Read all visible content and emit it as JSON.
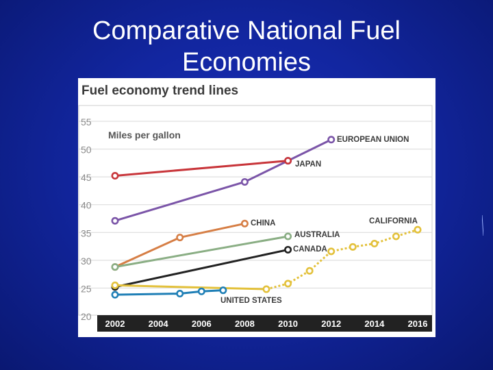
{
  "slide": {
    "title_line1": "Comparative National Fuel",
    "title_line2": "Economies"
  },
  "chart_data": {
    "type": "line",
    "title": "Fuel economy trend lines",
    "ylabel": "Miles per gallon",
    "xlabel": "",
    "xlim": [
      2001.3,
      2016.8
    ],
    "ylim": [
      20,
      56
    ],
    "x_ticks": [
      2002,
      2004,
      2006,
      2008,
      2010,
      2012,
      2014,
      2016
    ],
    "y_ticks": [
      20,
      25,
      30,
      35,
      40,
      45,
      50,
      55
    ],
    "grid": true,
    "legend": "inline labels",
    "series": [
      {
        "name": "EUROPEAN UNION",
        "color": "#7b55a8",
        "dashed": false,
        "points": [
          [
            2002,
            37.1
          ],
          [
            2008,
            44.1
          ],
          [
            2010,
            47.9
          ],
          [
            2012,
            51.7
          ]
        ]
      },
      {
        "name": "JAPAN",
        "color": "#c8353a",
        "dashed": false,
        "points": [
          [
            2002,
            45.2
          ],
          [
            2010,
            47.9
          ]
        ]
      },
      {
        "name": "CHINA",
        "color": "#d67e45",
        "dashed": false,
        "points": [
          [
            2002,
            28.8
          ],
          [
            2005,
            34.1
          ],
          [
            2008,
            36.6
          ]
        ]
      },
      {
        "name": "AUSTRALIA",
        "color": "#8aae84",
        "dashed": false,
        "points": [
          [
            2002,
            28.8
          ],
          [
            2010,
            34.3
          ]
        ]
      },
      {
        "name": "CANADA",
        "color": "#222222",
        "dashed": false,
        "points": [
          [
            2002,
            25.2
          ],
          [
            2010,
            31.9
          ]
        ]
      },
      {
        "name": "UNITED STATES",
        "color": "#1f7fb6",
        "dashed": false,
        "points": [
          [
            2002,
            23.8
          ],
          [
            2005,
            24.0
          ],
          [
            2006,
            24.4
          ],
          [
            2007,
            24.6
          ]
        ]
      },
      {
        "name": "CALIFORNIA",
        "color": "#e3c13b",
        "dashed": false,
        "points": [
          [
            2002,
            25.5
          ],
          [
            2009,
            24.8
          ]
        ]
      },
      {
        "name": "CALIFORNIA",
        "color": "#e3c13b",
        "dashed": true,
        "points": [
          [
            2009,
            24.8
          ],
          [
            2010,
            25.8
          ],
          [
            2011,
            28.1
          ],
          [
            2012,
            31.6
          ],
          [
            2013,
            32.4
          ],
          [
            2014,
            33.0
          ],
          [
            2015,
            34.3
          ],
          [
            2016,
            35.5
          ]
        ]
      }
    ],
    "labels": [
      {
        "text": "EUROPEAN UNION",
        "series": "EUROPEAN UNION"
      },
      {
        "text": "JAPAN",
        "series": "JAPAN"
      },
      {
        "text": "CHINA",
        "series": "CHINA"
      },
      {
        "text": "AUSTRALIA",
        "series": "AUSTRALIA"
      },
      {
        "text": "CANADA",
        "series": "CANADA"
      },
      {
        "text": "UNITED STATES",
        "series": "UNITED STATES"
      },
      {
        "text": "CALIFORNIA",
        "series": "CALIFORNIA"
      }
    ],
    "colors": {
      "axis_band": "#222222",
      "axis_text": "#ffffff",
      "tick_text": "#8a8a8a",
      "title_text": "#3a3a3a",
      "grid": "#d8d8d8"
    }
  }
}
